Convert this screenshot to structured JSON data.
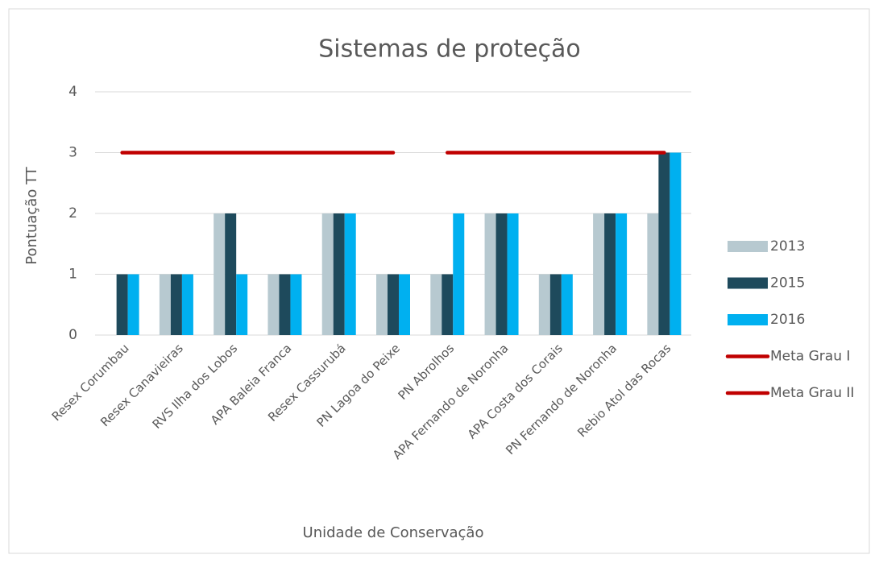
{
  "chart_data": {
    "type": "bar",
    "title": "Sistemas de proteção",
    "x_label": "Unidade de Conservação",
    "y_label": "Pontuação TT",
    "categories": [
      "Resex Corumbau",
      "Resex Canavieiras",
      "RVS Ilha dos Lobos",
      "APA Baleia Franca",
      "Resex Cassurubá",
      "PN Lagoa do Peixe",
      "PN Abrolhos",
      "APA Fernando de Noronha",
      "APA Costa dos Corais",
      "PN Fernando de Noronha",
      "Rebio Atol das Rocas"
    ],
    "series": [
      {
        "name": "2013",
        "type": "bar",
        "color": "#b7c9d0",
        "values": [
          0,
          1,
          2,
          1,
          2,
          1,
          1,
          2,
          1,
          2,
          2
        ]
      },
      {
        "name": "2015",
        "type": "bar",
        "color": "#1e4a5c",
        "values": [
          1,
          1,
          2,
          1,
          2,
          1,
          1,
          2,
          1,
          2,
          3
        ]
      },
      {
        "name": "2016",
        "type": "bar",
        "color": "#00b0f0",
        "values": [
          1,
          1,
          1,
          1,
          2,
          1,
          2,
          2,
          1,
          2,
          3
        ]
      },
      {
        "name": "Meta Grau I",
        "type": "line",
        "color": "#c00000",
        "values": [
          3,
          3,
          3,
          3,
          3,
          3,
          null,
          null,
          null,
          null,
          null
        ]
      },
      {
        "name": "Meta Grau II",
        "type": "line",
        "color": "#c00000",
        "values": [
          null,
          null,
          null,
          null,
          null,
          null,
          3,
          3,
          3,
          3,
          3
        ]
      }
    ],
    "ylim": [
      0,
      4
    ],
    "yticks": [
      0,
      1,
      2,
      3,
      4
    ],
    "grid": true,
    "legend": "right"
  }
}
